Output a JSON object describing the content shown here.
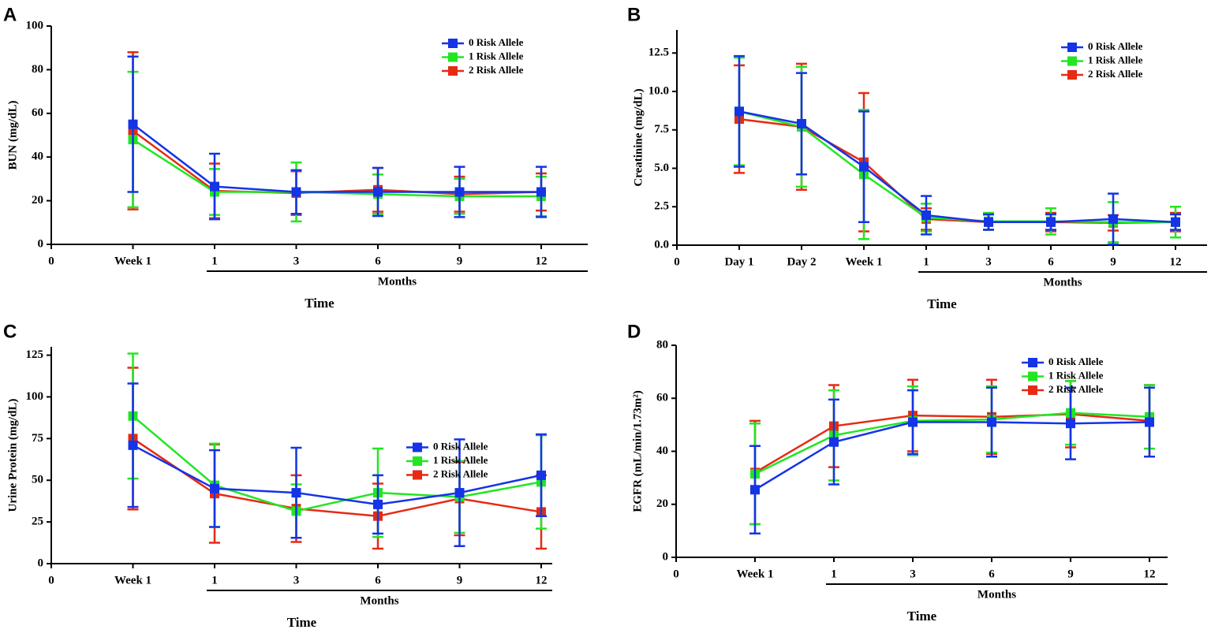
{
  "chart_data": [
    {
      "type": "line",
      "label": "A",
      "ylabel": "BUN (mg/dL)",
      "xlabel": "Time",
      "bracket_label": "Months",
      "categories": [
        "0",
        "Week 1",
        "1",
        "3",
        "6",
        "9",
        "12"
      ],
      "ylim": [
        0,
        100
      ],
      "yticks": [
        0,
        20,
        40,
        60,
        80,
        100
      ],
      "legend": "upper right",
      "series": [
        {
          "name": "0 Risk Allele",
          "color": "#1434e6",
          "values": [
            null,
            55,
            26.5,
            24,
            24,
            24,
            24
          ],
          "errors": [
            null,
            31,
            15,
            10,
            11,
            11.5,
            11.5
          ]
        },
        {
          "name": "1 Risk Allele",
          "color": "#22e622",
          "values": [
            null,
            48,
            24,
            24,
            23,
            22,
            22
          ],
          "errors": [
            null,
            31,
            10.5,
            13.5,
            9,
            8,
            9
          ]
        },
        {
          "name": "2 Risk Allele",
          "color": "#e62a14",
          "values": [
            null,
            52,
            24.5,
            23.5,
            25,
            23,
            24
          ],
          "errors": [
            null,
            36,
            12.5,
            10,
            10,
            8,
            8.5
          ]
        }
      ]
    },
    {
      "type": "line",
      "label": "B",
      "ylabel": "Creatinine (mg/dL)",
      "xlabel": "Time",
      "bracket_label": "Months",
      "categories": [
        "0",
        "Day 1",
        "Day 2",
        "Week 1",
        "1",
        "3",
        "6",
        "9",
        "12"
      ],
      "ylim": [
        0,
        14
      ],
      "yticks": [
        {
          "value": 0,
          "label": "0.0"
        },
        2.5,
        {
          "value": 5,
          "label": "5.0"
        },
        7.5,
        {
          "value": 10,
          "label": "10.0"
        },
        12.5
      ],
      "legend": "upper right",
      "series": [
        {
          "name": "0 Risk Allele",
          "color": "#1434e6",
          "values": [
            null,
            8.7,
            7.9,
            5.1,
            1.95,
            1.5,
            1.5,
            1.7,
            1.5
          ],
          "errors": [
            null,
            3.6,
            3.3,
            3.6,
            1.25,
            0.5,
            0.5,
            1.65,
            0.5
          ]
        },
        {
          "name": "1 Risk Allele",
          "color": "#22e622",
          "values": [
            null,
            8.7,
            7.7,
            4.6,
            1.8,
            1.55,
            1.55,
            1.5,
            1.5
          ],
          "errors": [
            null,
            3.5,
            3.9,
            4.2,
            0.9,
            0.55,
            0.85,
            1.3,
            1.0
          ]
        },
        {
          "name": "2 Risk Allele",
          "color": "#e62a14",
          "values": [
            null,
            8.2,
            7.7,
            5.4,
            1.7,
            1.5,
            1.5,
            1.45,
            1.5
          ],
          "errors": [
            null,
            3.5,
            4.1,
            4.5,
            0.7,
            0.5,
            0.6,
            0.5,
            0.6
          ]
        }
      ]
    },
    {
      "type": "line",
      "label": "C",
      "ylabel": "Urine Protein (mg/dL)",
      "xlabel": "Time",
      "bracket_label": "Months",
      "categories": [
        "0",
        "Week 1",
        "1",
        "3",
        "6",
        "9",
        "12"
      ],
      "ylim": [
        0,
        130
      ],
      "yticks": [
        0,
        25,
        50,
        75,
        100,
        125
      ],
      "legend": "center right",
      "series": [
        {
          "name": "0 Risk Allele",
          "color": "#1434e6",
          "values": [
            null,
            71,
            45,
            42.5,
            35.5,
            42.5,
            53
          ],
          "errors": [
            null,
            37,
            23,
            27,
            17.5,
            32,
            24.5
          ]
        },
        {
          "name": "1 Risk Allele",
          "color": "#22e622",
          "values": [
            null,
            88.5,
            47,
            31.5,
            42.5,
            40,
            49
          ],
          "errors": [
            null,
            37.5,
            25,
            16,
            26.5,
            21.5,
            28
          ]
        },
        {
          "name": "2 Risk Allele",
          "color": "#e62a14",
          "values": [
            null,
            75,
            42,
            33,
            28.5,
            39,
            31
          ],
          "errors": [
            null,
            42.5,
            29.5,
            20,
            19.5,
            22,
            22
          ]
        }
      ]
    },
    {
      "type": "line",
      "label": "D",
      "ylabel": "EGFR (mL/min/1.73m²)",
      "xlabel": "Time",
      "bracket_label": "Months",
      "categories": [
        "0",
        "Week 1",
        "1",
        "3",
        "6",
        "9",
        "12"
      ],
      "ylim": [
        0,
        80
      ],
      "yticks": [
        0,
        20,
        40,
        60,
        80
      ],
      "legend": "upper right",
      "series": [
        {
          "name": "0 Risk Allele",
          "color": "#1434e6",
          "values": [
            null,
            25.5,
            43.5,
            51,
            51,
            50.5,
            51
          ],
          "errors": [
            null,
            16.5,
            16,
            12,
            13,
            13.5,
            13
          ]
        },
        {
          "name": "1 Risk Allele",
          "color": "#22e622",
          "values": [
            null,
            31.5,
            46,
            51.5,
            52,
            54.5,
            53
          ],
          "errors": [
            null,
            19,
            17,
            13,
            12.5,
            12,
            12
          ]
        },
        {
          "name": "2 Risk Allele",
          "color": "#e62a14",
          "values": [
            null,
            32,
            49.5,
            53.5,
            53,
            54,
            51.5
          ],
          "errors": [
            null,
            19.5,
            15.5,
            13.5,
            14,
            12.5,
            13.5
          ]
        }
      ]
    }
  ]
}
